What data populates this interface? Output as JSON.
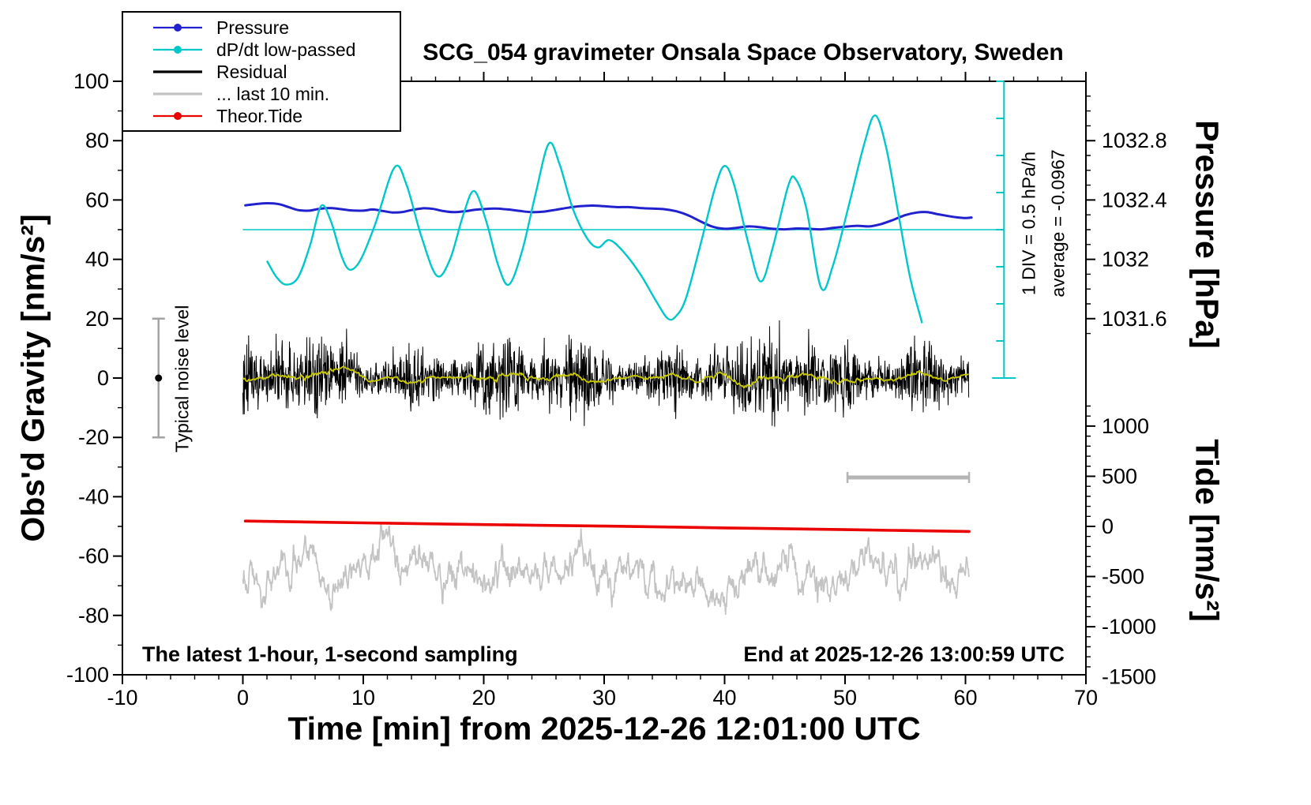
{
  "page": {
    "background": "#ffffff"
  },
  "chart_data": {
    "type": "line",
    "title": "SCG_054 gravimeter Onsala Space Observatory, Sweden",
    "xlabel": "Time [min] from 2025-12-26 12:01:00 UTC",
    "ylabel_left": "Obs'd Gravity [nm/s²]",
    "ylabel_right_pressure": "Pressure [hPa]",
    "ylabel_right_tide": "Tide [nm/s²]",
    "annotations": {
      "sampling": "The latest 1-hour, 1-second sampling",
      "end_time": "End at 2025-12-26 13:00:59 UTC",
      "div_scale": "1 DIV = 0.5 hPa/h",
      "average": "average = -0.0967",
      "noise_level": "Typical noise level"
    },
    "axes": {
      "xlim": [
        -10,
        70
      ],
      "x_major_ticks": [
        -10,
        0,
        10,
        20,
        30,
        40,
        50,
        60,
        70
      ],
      "x_minor_step": 2,
      "ylim_left": [
        -100,
        100
      ],
      "y_major_ticks": [
        -100,
        -80,
        -60,
        -40,
        -20,
        0,
        20,
        40,
        60,
        80,
        100
      ],
      "y_minor_step": 10,
      "pressure_axis": {
        "tick_values": [
          1032.8,
          1032.4,
          1032.0,
          1031.6
        ],
        "tick_labels": [
          "1032.8",
          "1032.4",
          "1032",
          "1031.6"
        ],
        "ref_hpa": 1032.4,
        "ref_gravity_units": 60,
        "hpa_per_gravity_unit": 0.02,
        "minor_step_hpa": 0.1,
        "minor_range_hpa": [
          1031.5,
          1033.1
        ]
      },
      "tide_axis": {
        "tick_values": [
          1000,
          500,
          0,
          -500,
          -1000,
          -1500
        ],
        "zero_gravity_units": -50,
        "gravity_units_per_1000": 33.8,
        "minor_step": 100
      }
    },
    "legend": [
      {
        "label": "Pressure",
        "color": "#2121cd",
        "marker": "dot-line"
      },
      {
        "label": "dP/dt low-passed",
        "color": "#00c8c8",
        "marker": "dot-line"
      },
      {
        "label": "Residual",
        "color": "#000000",
        "marker": "line"
      },
      {
        "label": "... last 10 min.",
        "color": "#c3c3c3",
        "marker": "line"
      },
      {
        "label": "Theor.Tide",
        "color": "#ea0000",
        "marker": "dot-line"
      }
    ],
    "series": {
      "pressure": {
        "name": "Pressure",
        "color": "#2121cd",
        "width": 3,
        "points": [
          [
            0.2,
            58.2
          ],
          [
            1,
            58.6
          ],
          [
            2,
            58.9
          ],
          [
            3,
            58.6
          ],
          [
            3.8,
            57.6
          ],
          [
            4.6,
            56.6
          ],
          [
            5.5,
            56.4
          ],
          [
            6.3,
            57.0
          ],
          [
            7.2,
            57.3
          ],
          [
            8,
            57.0
          ],
          [
            9,
            56.5
          ],
          [
            10,
            56.4
          ],
          [
            10.8,
            56.8
          ],
          [
            11.6,
            56.3
          ],
          [
            12.4,
            55.8
          ],
          [
            13.2,
            55.9
          ],
          [
            14,
            56.6
          ],
          [
            15,
            57.2
          ],
          [
            15.8,
            57.0
          ],
          [
            16.6,
            56.3
          ],
          [
            17.5,
            55.9
          ],
          [
            18.4,
            56.2
          ],
          [
            19.3,
            56.7
          ],
          [
            20.2,
            57.0
          ],
          [
            21,
            57.1
          ],
          [
            22,
            56.8
          ],
          [
            23,
            56.3
          ],
          [
            24,
            55.9
          ],
          [
            25,
            56.1
          ],
          [
            26,
            56.7
          ],
          [
            27,
            57.4
          ],
          [
            28,
            57.9
          ],
          [
            29,
            58.1
          ],
          [
            30,
            57.9
          ],
          [
            31,
            57.6
          ],
          [
            32,
            57.6
          ],
          [
            33,
            57.3
          ],
          [
            34,
            57.1
          ],
          [
            35,
            56.9
          ],
          [
            36,
            56.2
          ],
          [
            37,
            54.8
          ],
          [
            38,
            52.8
          ],
          [
            39,
            51.0
          ],
          [
            40,
            50.3
          ],
          [
            41,
            50.6
          ],
          [
            42,
            51.1
          ],
          [
            43,
            50.8
          ],
          [
            44,
            50.3
          ],
          [
            45,
            50.1
          ],
          [
            46,
            50.4
          ],
          [
            47,
            50.3
          ],
          [
            48,
            50.1
          ],
          [
            49,
            50.6
          ],
          [
            50,
            51.0
          ],
          [
            51,
            51.3
          ],
          [
            52,
            51.1
          ],
          [
            53,
            51.9
          ],
          [
            54,
            53.3
          ],
          [
            55,
            54.9
          ],
          [
            56,
            55.8
          ],
          [
            56.8,
            55.9
          ],
          [
            57.6,
            55.3
          ],
          [
            58.4,
            54.7
          ],
          [
            59.2,
            54.2
          ],
          [
            60,
            53.9
          ],
          [
            60.5,
            54.1
          ]
        ]
      },
      "dpdt_lowpassed": {
        "name": "dP/dt low-passed",
        "color": "#00c8c8",
        "width": 2.4,
        "ref_level_gravity_units": 50,
        "axis_x_min": 63.2,
        "axis_div_gravity_units": 12.5,
        "points": [
          [
            2.0,
            39.5
          ],
          [
            2.8,
            34
          ],
          [
            3.6,
            31.5
          ],
          [
            4.6,
            34
          ],
          [
            5.6,
            45
          ],
          [
            6.5,
            58
          ],
          [
            7.3,
            53
          ],
          [
            8.2,
            41
          ],
          [
            8.9,
            36.5
          ],
          [
            9.8,
            40
          ],
          [
            11,
            52
          ],
          [
            12.6,
            71
          ],
          [
            13.6,
            65
          ],
          [
            14.8,
            48
          ],
          [
            16.1,
            34.5
          ],
          [
            17.2,
            40
          ],
          [
            18.3,
            55
          ],
          [
            19.2,
            63
          ],
          [
            20.2,
            53
          ],
          [
            21.2,
            38
          ],
          [
            22.1,
            31.5
          ],
          [
            23.2,
            43
          ],
          [
            24.3,
            62
          ],
          [
            25.4,
            79
          ],
          [
            26.3,
            72
          ],
          [
            27.4,
            57
          ],
          [
            28.6,
            47
          ],
          [
            29.5,
            44
          ],
          [
            30.4,
            46.5
          ],
          [
            31.5,
            43
          ],
          [
            33,
            35
          ],
          [
            34.3,
            26
          ],
          [
            35.3,
            20
          ],
          [
            36,
            21
          ],
          [
            36.8,
            27
          ],
          [
            38,
            45
          ],
          [
            39.2,
            64
          ],
          [
            40,
            71.5
          ],
          [
            40.8,
            65
          ],
          [
            42,
            45
          ],
          [
            43,
            32.5
          ],
          [
            44,
            44
          ],
          [
            45.3,
            65
          ],
          [
            45.9,
            67
          ],
          [
            46.8,
            57
          ],
          [
            48,
            30.5
          ],
          [
            49,
            38
          ],
          [
            50.3,
            58
          ],
          [
            51.6,
            79
          ],
          [
            52.5,
            88.5
          ],
          [
            53.4,
            78
          ],
          [
            54.4,
            56
          ],
          [
            55.4,
            34
          ],
          [
            56.4,
            18.5
          ]
        ]
      },
      "residual": {
        "name": "Residual",
        "color": "#000000",
        "width": 1,
        "x_range": [
          0,
          60.3
        ],
        "mean": 0,
        "typical_amplitude": 9,
        "seed": 1234567
      },
      "residual_smoothed": {
        "name": "Residual low-passed",
        "color": "#c9c900",
        "width": 1.8,
        "amplitude": 3
      },
      "last_10_min": {
        "name": "... last 10 min.",
        "color": "#c3c3c3",
        "width": 1.7,
        "x_range": [
          0,
          60.3
        ],
        "mean": -65,
        "typical_amplitude": 10,
        "seed": 424242
      },
      "theor_tide": {
        "name": "Theor.Tide",
        "color": "#ea0000",
        "width": 3.6,
        "points": [
          [
            0.2,
            -48.2
          ],
          [
            10,
            -48.8
          ],
          [
            20,
            -49.4
          ],
          [
            30,
            -49.9
          ],
          [
            40,
            -50.5
          ],
          [
            50,
            -51.1
          ],
          [
            60.3,
            -51.7
          ]
        ]
      },
      "window_bar": {
        "color": "#b5b5b5",
        "y": -33.5,
        "x_range": [
          50.2,
          60.3
        ]
      },
      "noise_level_bar": {
        "x": -7,
        "y_range": [
          -20,
          20
        ],
        "bar_color": "#a3a3a3",
        "dot_color": "#000000"
      }
    }
  }
}
